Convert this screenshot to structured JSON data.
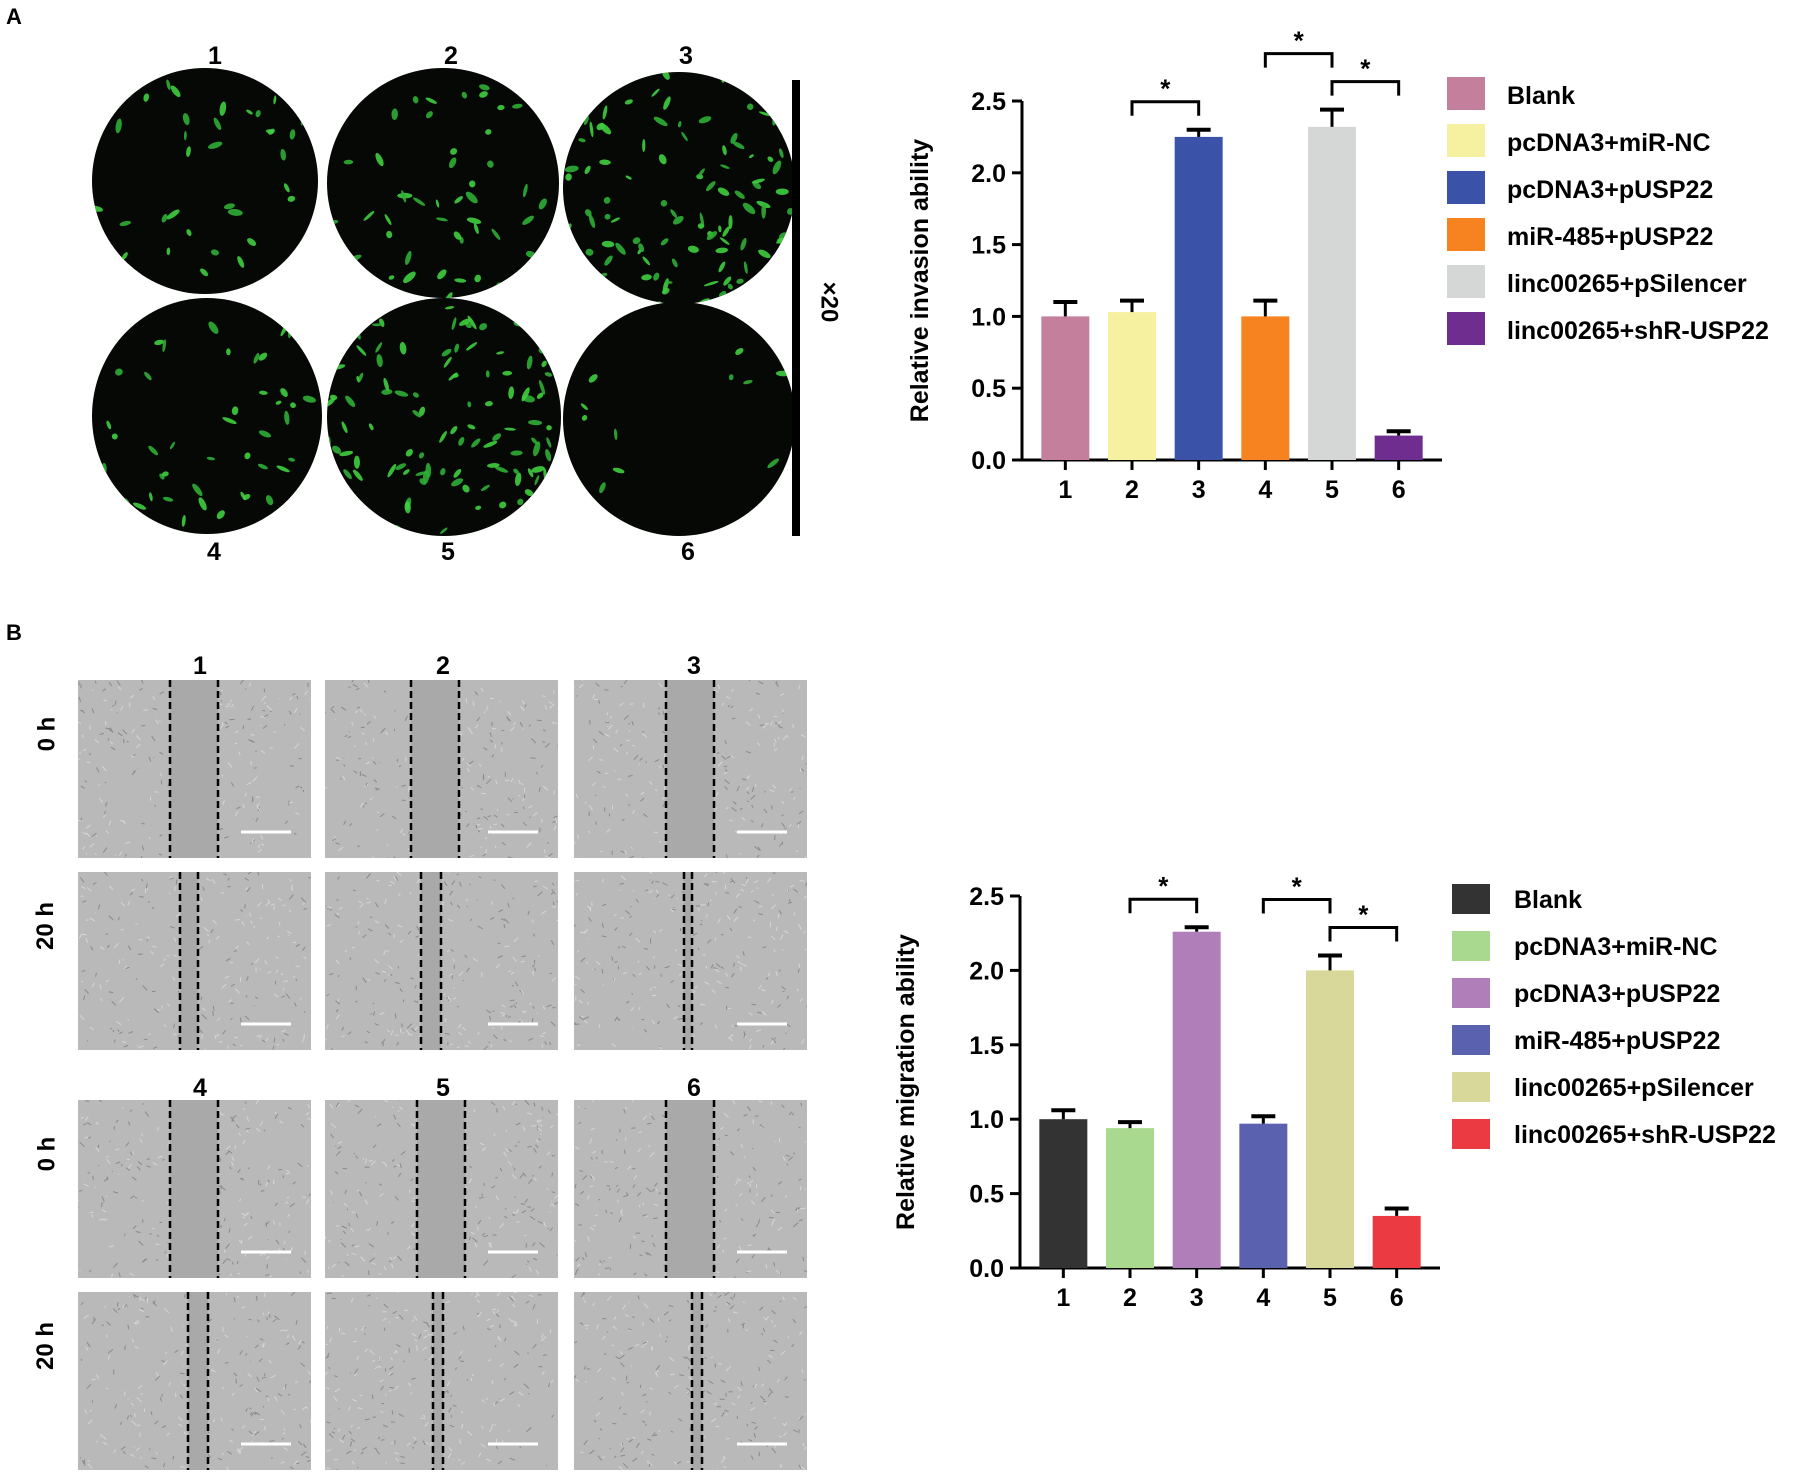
{
  "panels": {
    "a_label": "A",
    "b_label": "B"
  },
  "panel_a": {
    "top_numbers": [
      "1",
      "2",
      "3"
    ],
    "bottom_numbers": [
      "4",
      "5",
      "6"
    ],
    "magnification": "×20"
  },
  "panel_b": {
    "group1_numbers": [
      "1",
      "2",
      "3"
    ],
    "group2_numbers": [
      "4",
      "5",
      "6"
    ],
    "row_labels": [
      "0 h",
      "20 h",
      "0 h",
      "20 h"
    ]
  },
  "chart_data": [
    {
      "type": "bar",
      "ylabel": "Relative invasion ability",
      "xlabel": "",
      "categories": [
        "1",
        "2",
        "3",
        "4",
        "5",
        "6"
      ],
      "values": [
        1.0,
        1.03,
        2.25,
        1.0,
        2.32,
        0.17
      ],
      "errors": [
        0.1,
        0.08,
        0.05,
        0.11,
        0.12,
        0.03
      ],
      "ylim": [
        0,
        2.5
      ],
      "yticks": [
        "0.0",
        "0.5",
        "1.0",
        "1.5",
        "2.0",
        "2.5"
      ],
      "colors": [
        "#c47f9d",
        "#f5f1a0",
        "#3a52a8",
        "#f68320",
        "#d5d6d6",
        "#6f2e8f"
      ],
      "legend": [
        "Blank",
        "pcDNA3+miR-NC",
        "pcDNA3+pUSP22",
        "miR-485+pUSP22",
        "linc00265+pSilencer",
        "linc00265+shR-USP22"
      ],
      "legend_position": "right",
      "significance": [
        {
          "from": "2",
          "to": "3",
          "label": "*"
        },
        {
          "from": "4",
          "to": "5",
          "label": "*"
        },
        {
          "from": "5",
          "to": "6",
          "label": "*"
        }
      ]
    },
    {
      "type": "bar",
      "ylabel": "Relative migration ability",
      "xlabel": "",
      "categories": [
        "1",
        "2",
        "3",
        "4",
        "5",
        "6"
      ],
      "values": [
        1.0,
        0.94,
        2.26,
        0.97,
        2.0,
        0.35
      ],
      "errors": [
        0.06,
        0.04,
        0.03,
        0.05,
        0.1,
        0.05
      ],
      "ylim": [
        0,
        2.5
      ],
      "yticks": [
        "0.0",
        "0.5",
        "1.0",
        "1.5",
        "2.0",
        "2.5"
      ],
      "colors": [
        "#333333",
        "#a9d98e",
        "#b07fb9",
        "#5a62b0",
        "#d8d89a",
        "#ec3a43"
      ],
      "legend": [
        "Blank",
        "pcDNA3+miR-NC",
        "pcDNA3+pUSP22",
        "miR-485+pUSP22",
        "linc00265+pSilencer",
        "linc00265+shR-USP22"
      ],
      "legend_position": "right",
      "significance": [
        {
          "from": "2",
          "to": "3",
          "label": "*"
        },
        {
          "from": "4",
          "to": "5",
          "label": "*"
        },
        {
          "from": "5",
          "to": "6",
          "label": "*"
        }
      ]
    }
  ]
}
